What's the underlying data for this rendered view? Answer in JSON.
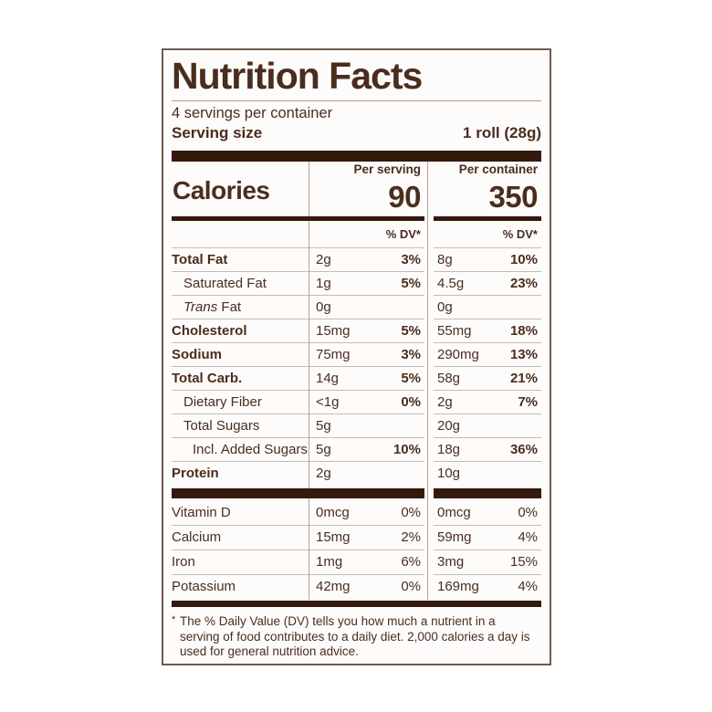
{
  "colors": {
    "text": "#4a2d1e",
    "bar": "#34190d",
    "hairline": "#c8bbb0",
    "vline": "#b2a499",
    "border": "#6e5b4d",
    "label_bg": "#fdfcfa",
    "page_bg": "#ffffff"
  },
  "label": {
    "title": "Nutrition Facts",
    "servings_per_container": "4 servings per container",
    "serving_size": {
      "label": "Serving size",
      "value": "1 roll (28g)"
    },
    "calories": {
      "word": "Calories",
      "per_serving_header": "Per serving",
      "per_container_header": "Per container",
      "per_serving_value": "90",
      "per_container_value": "350"
    },
    "dv_header": "% DV*",
    "nutrients": [
      {
        "label": "Total Fat",
        "bold": true,
        "indent": 0,
        "per_serving": {
          "amount": "2g",
          "dv": "3%"
        },
        "per_container": {
          "amount": "8g",
          "dv": "10%"
        }
      },
      {
        "label": "Saturated Fat",
        "bold": false,
        "indent": 1,
        "per_serving": {
          "amount": "1g",
          "dv": "5%"
        },
        "per_container": {
          "amount": "4.5g",
          "dv": "23%"
        }
      },
      {
        "label_italic": "Trans",
        "label": " Fat",
        "bold": false,
        "indent": 1,
        "per_serving": {
          "amount": "0g",
          "dv": ""
        },
        "per_container": {
          "amount": "0g",
          "dv": ""
        }
      },
      {
        "label": "Cholesterol",
        "bold": true,
        "indent": 0,
        "per_serving": {
          "amount": "15mg",
          "dv": "5%"
        },
        "per_container": {
          "amount": "55mg",
          "dv": "18%"
        }
      },
      {
        "label": "Sodium",
        "bold": true,
        "indent": 0,
        "per_serving": {
          "amount": "75mg",
          "dv": "3%"
        },
        "per_container": {
          "amount": "290mg",
          "dv": "13%"
        }
      },
      {
        "label": "Total Carb.",
        "bold": true,
        "indent": 0,
        "per_serving": {
          "amount": "14g",
          "dv": "5%"
        },
        "per_container": {
          "amount": "58g",
          "dv": "21%"
        }
      },
      {
        "label": "Dietary Fiber",
        "bold": false,
        "indent": 1,
        "per_serving": {
          "amount": "<1g",
          "dv": "0%"
        },
        "per_container": {
          "amount": "2g",
          "dv": "7%"
        }
      },
      {
        "label": "Total Sugars",
        "bold": false,
        "indent": 1,
        "per_serving": {
          "amount": "5g",
          "dv": ""
        },
        "per_container": {
          "amount": "20g",
          "dv": ""
        }
      },
      {
        "label": "Incl. Added Sugars",
        "bold": false,
        "indent": 2,
        "per_serving": {
          "amount": "5g",
          "dv": "10%"
        },
        "per_container": {
          "amount": "18g",
          "dv": "36%"
        }
      },
      {
        "label": "Protein",
        "bold": true,
        "indent": 0,
        "per_serving": {
          "amount": "2g",
          "dv": ""
        },
        "per_container": {
          "amount": "10g",
          "dv": ""
        }
      }
    ],
    "vitamins": [
      {
        "label": "Vitamin D",
        "per_serving": {
          "amount": "0mcg",
          "dv": "0%"
        },
        "per_container": {
          "amount": "0mcg",
          "dv": "0%"
        }
      },
      {
        "label": "Calcium",
        "per_serving": {
          "amount": "15mg",
          "dv": "2%"
        },
        "per_container": {
          "amount": "59mg",
          "dv": "4%"
        }
      },
      {
        "label": "Iron",
        "per_serving": {
          "amount": "1mg",
          "dv": "6%"
        },
        "per_container": {
          "amount": "3mg",
          "dv": "15%"
        }
      },
      {
        "label": "Potassium",
        "per_serving": {
          "amount": "42mg",
          "dv": "0%"
        },
        "per_container": {
          "amount": "169mg",
          "dv": "4%"
        }
      }
    ],
    "footnote": {
      "mark": "*",
      "text": "The % Daily Value (DV) tells you how much a nutrient in a serving of food contributes to a daily diet. 2,000 calories a day is used for general nutrition advice."
    }
  }
}
